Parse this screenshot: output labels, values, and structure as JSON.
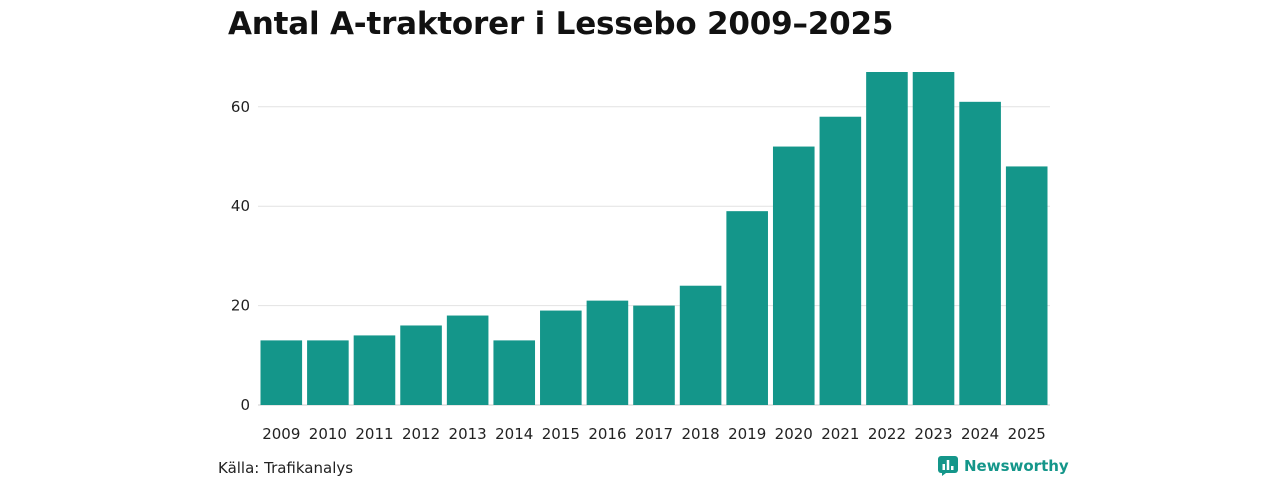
{
  "chart_data": {
    "type": "bar",
    "title": "Antal A-traktorer i Lessebo 2009–2025",
    "xlabel": "",
    "ylabel": "",
    "categories": [
      "2009",
      "2010",
      "2011",
      "2012",
      "2013",
      "2014",
      "2015",
      "2016",
      "2017",
      "2018",
      "2019",
      "2020",
      "2021",
      "2022",
      "2023",
      "2024",
      "2025"
    ],
    "values": [
      13,
      13,
      14,
      16,
      18,
      13,
      19,
      21,
      20,
      24,
      39,
      52,
      58,
      67,
      67,
      61,
      48
    ],
    "ylim": [
      0,
      67
    ],
    "yticks": [
      0,
      20,
      40,
      60
    ],
    "grid": true,
    "bar_color": "#14968a",
    "legend": "none"
  },
  "footer": {
    "source": "Källa: Trafikanalys",
    "brand": "Newsworthy",
    "brand_icon": "newsworthy-logo-icon",
    "brand_color": "#14968a"
  }
}
